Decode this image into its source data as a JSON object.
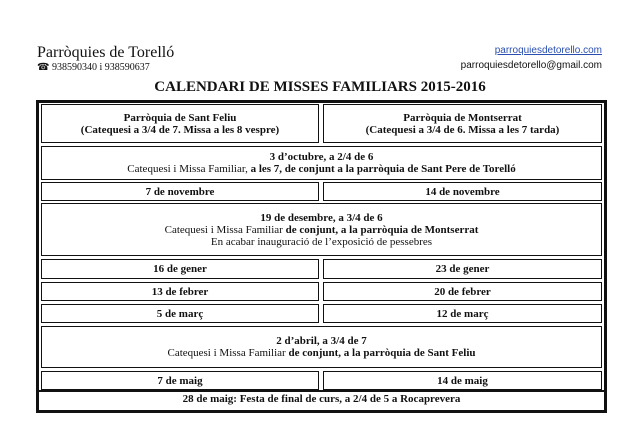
{
  "header": {
    "organization": "Parròquies de Torelló",
    "phone_icon": "telephone-icon",
    "phone": "938590340 i 938590637",
    "website": "parroquiesdetorello.com",
    "email": "parroquiesdetorello@gmail.com"
  },
  "title": "CALENDARI DE MISSES FAMILIARS 2015-2016",
  "table": {
    "left_header": {
      "name": "Parròquia de Sant Feliu",
      "detail": "(Catequesi a 3/4 de 7. Missa a les 8 vespre)"
    },
    "right_header": {
      "name": "Parròquia de Montserrat",
      "detail": "(Catequesi a 3/4 de 6. Missa a les 7 tarda)"
    },
    "october": {
      "date": "3 d’octubre, a 2/4 de 6",
      "text_normal": "Catequesi i Missa Familiar, ",
      "text_bold": "a les 7, de conjunt a la parròquia de Sant Pere de Torelló"
    },
    "november": {
      "left": "7 de novembre",
      "right": "14 de novembre"
    },
    "december": {
      "date": "19 de desembre, a 3/4 de 6",
      "text_normal": "Catequesi i Missa Familiar ",
      "text_bold": "de conjunt, a la parròquia de Montserrat",
      "note": "En acabar inauguració de l’exposició de pessebres"
    },
    "january": {
      "left": "16 de gener",
      "right": "23 de gener"
    },
    "february": {
      "left": "13 de febrer",
      "right": "20 de febrer"
    },
    "march": {
      "left": "5 de març",
      "right": "12 de març"
    },
    "april": {
      "date": "2 d’abril, a 3/4 de 7",
      "text_normal": "Catequesi i Missa Familiar ",
      "text_bold": "de conjunt, a la parròquia de Sant Feliu"
    },
    "may": {
      "left": "7 de maig",
      "right": "14 de maig"
    },
    "final": "28 de maig: Festa de final de curs, a 2/4 de 5 a Rocaprevera"
  }
}
